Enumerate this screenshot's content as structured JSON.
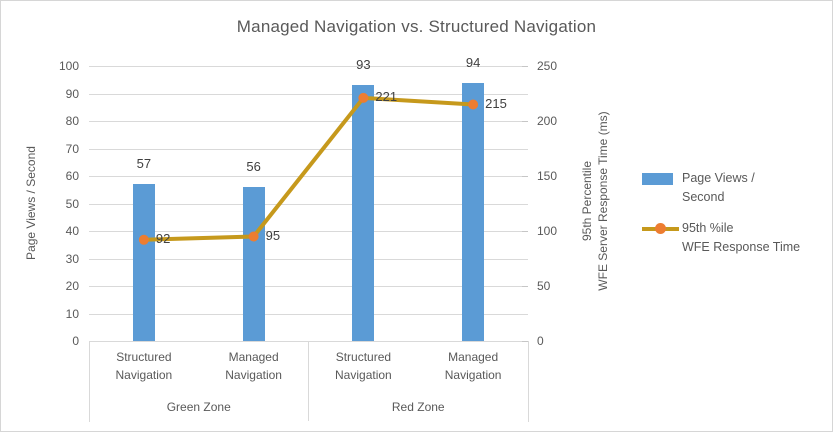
{
  "chart_data": {
    "type": "combo-bar-line",
    "title": "Managed Navigation vs. Structured Navigation",
    "categories": [
      "Structured Navigation",
      "Managed Navigation",
      "Structured Navigation",
      "Managed Navigation"
    ],
    "category_groups": [
      {
        "label": "Green Zone",
        "span": 2
      },
      {
        "label": "Red Zone",
        "span": 2
      }
    ],
    "series": [
      {
        "name": "Page Views / Second",
        "type": "bar",
        "y_axis": "primary",
        "color": "#5B9BD5",
        "values": [
          57,
          56,
          93,
          94
        ]
      },
      {
        "name": "95th %ile WFE Response Time",
        "type": "line",
        "y_axis": "secondary",
        "color": "#C6991C",
        "marker_color": "#ED7D31",
        "values": [
          92,
          95,
          221,
          215
        ]
      }
    ],
    "primary_axis": {
      "label": "Page Views / Second",
      "min": 0,
      "max": 100,
      "step": 10,
      "ticks": [
        0,
        10,
        20,
        30,
        40,
        50,
        60,
        70,
        80,
        90,
        100
      ]
    },
    "secondary_axis": {
      "label_lines": [
        "95th Percentile",
        "WFE Server Response Time (ms)"
      ],
      "min": 0,
      "max": 250,
      "step": 50,
      "ticks": [
        0,
        50,
        100,
        150,
        200,
        250
      ]
    },
    "legend": {
      "position": "right",
      "items": [
        {
          "swatch": "bar",
          "color": "#5B9BD5",
          "lines": [
            "Page Views /",
            "Second"
          ]
        },
        {
          "swatch": "line-marker",
          "color": "#C6991C",
          "marker_color": "#ED7D31",
          "lines": [
            "95th %ile",
            "WFE Response Time"
          ]
        }
      ]
    },
    "gridlines": true,
    "colors": {
      "gridline": "#D9D9D9",
      "axis_text": "#595959",
      "data_label_text": "#404040",
      "title_text": "#595959",
      "frame_border": "#D6D6D6"
    }
  }
}
